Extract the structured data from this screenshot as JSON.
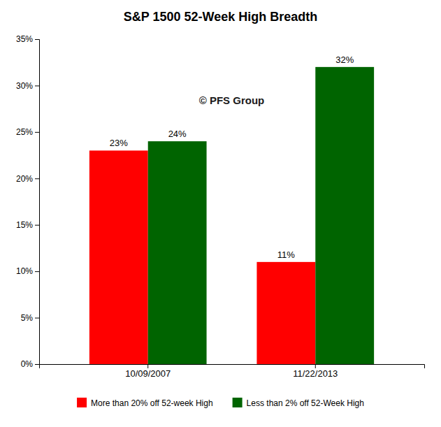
{
  "chart_data": {
    "type": "bar",
    "title": "S&P 1500 52-Week High Breadth",
    "categories": [
      "10/09/2007",
      "11/22/2013"
    ],
    "series": [
      {
        "name": "More than 20% off 52-week High",
        "color": "#FF0000",
        "values": [
          23,
          11
        ],
        "value_labels": [
          "23%",
          "11%"
        ]
      },
      {
        "name": "Less than 2% off 52-Week High",
        "color": "#006400",
        "values": [
          24,
          32
        ],
        "value_labels": [
          "24%",
          "32%"
        ]
      }
    ],
    "ylim": [
      0,
      35
    ],
    "yticks": [
      {
        "value": 0,
        "label": "0%"
      },
      {
        "value": 5,
        "label": "5%"
      },
      {
        "value": 10,
        "label": "10%"
      },
      {
        "value": 15,
        "label": "15%"
      },
      {
        "value": 20,
        "label": "20%"
      },
      {
        "value": 25,
        "label": "25%"
      },
      {
        "value": 30,
        "label": "30%"
      },
      {
        "value": 35,
        "label": "35%"
      }
    ],
    "annotations": [
      "© PFS Group"
    ],
    "data_labels": true,
    "grid": false,
    "legend": "bottom"
  }
}
